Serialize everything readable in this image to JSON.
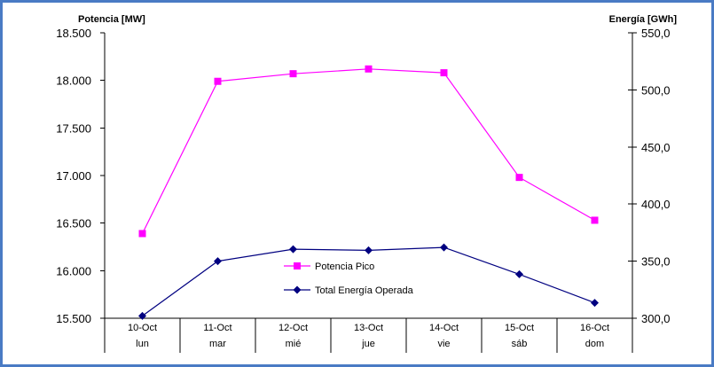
{
  "chart_data": {
    "type": "line",
    "categories": [
      {
        "date": "10-Oct",
        "day": "lun"
      },
      {
        "date": "11-Oct",
        "day": "mar"
      },
      {
        "date": "12-Oct",
        "day": "mié"
      },
      {
        "date": "13-Oct",
        "day": "jue"
      },
      {
        "date": "14-Oct",
        "day": "vie"
      },
      {
        "date": "15-Oct",
        "day": "sáb"
      },
      {
        "date": "16-Oct",
        "day": "dom"
      }
    ],
    "left_axis": {
      "label": "Potencia [MW]",
      "ylim": [
        15500,
        18500
      ],
      "ticks": [
        15500,
        16000,
        16500,
        17000,
        17500,
        18000,
        18500
      ],
      "tick_labels": [
        "15.500",
        "16.000",
        "16.500",
        "17.000",
        "17.500",
        "18.000",
        "18.500"
      ]
    },
    "right_axis": {
      "label": "Energía [GWh]",
      "ylim": [
        300,
        550
      ],
      "ticks": [
        300,
        350,
        400,
        450,
        500,
        550
      ],
      "tick_labels": [
        "300,0",
        "350,0",
        "400,0",
        "450,0",
        "500,0",
        "550,0"
      ]
    },
    "series": [
      {
        "name": "Potencia Pico",
        "axis": "left",
        "color": "#ff00ff",
        "marker": "square",
        "values": [
          16390,
          17990,
          18070,
          18120,
          18080,
          16980,
          16530
        ]
      },
      {
        "name": "Total Energía Operada",
        "axis": "right",
        "color": "#000080",
        "marker": "diamond",
        "values": [
          302,
          350,
          360.5,
          359.5,
          362,
          338.5,
          313.5
        ]
      }
    ],
    "legend": {
      "placement": "center-bottom"
    },
    "grid": false
  }
}
